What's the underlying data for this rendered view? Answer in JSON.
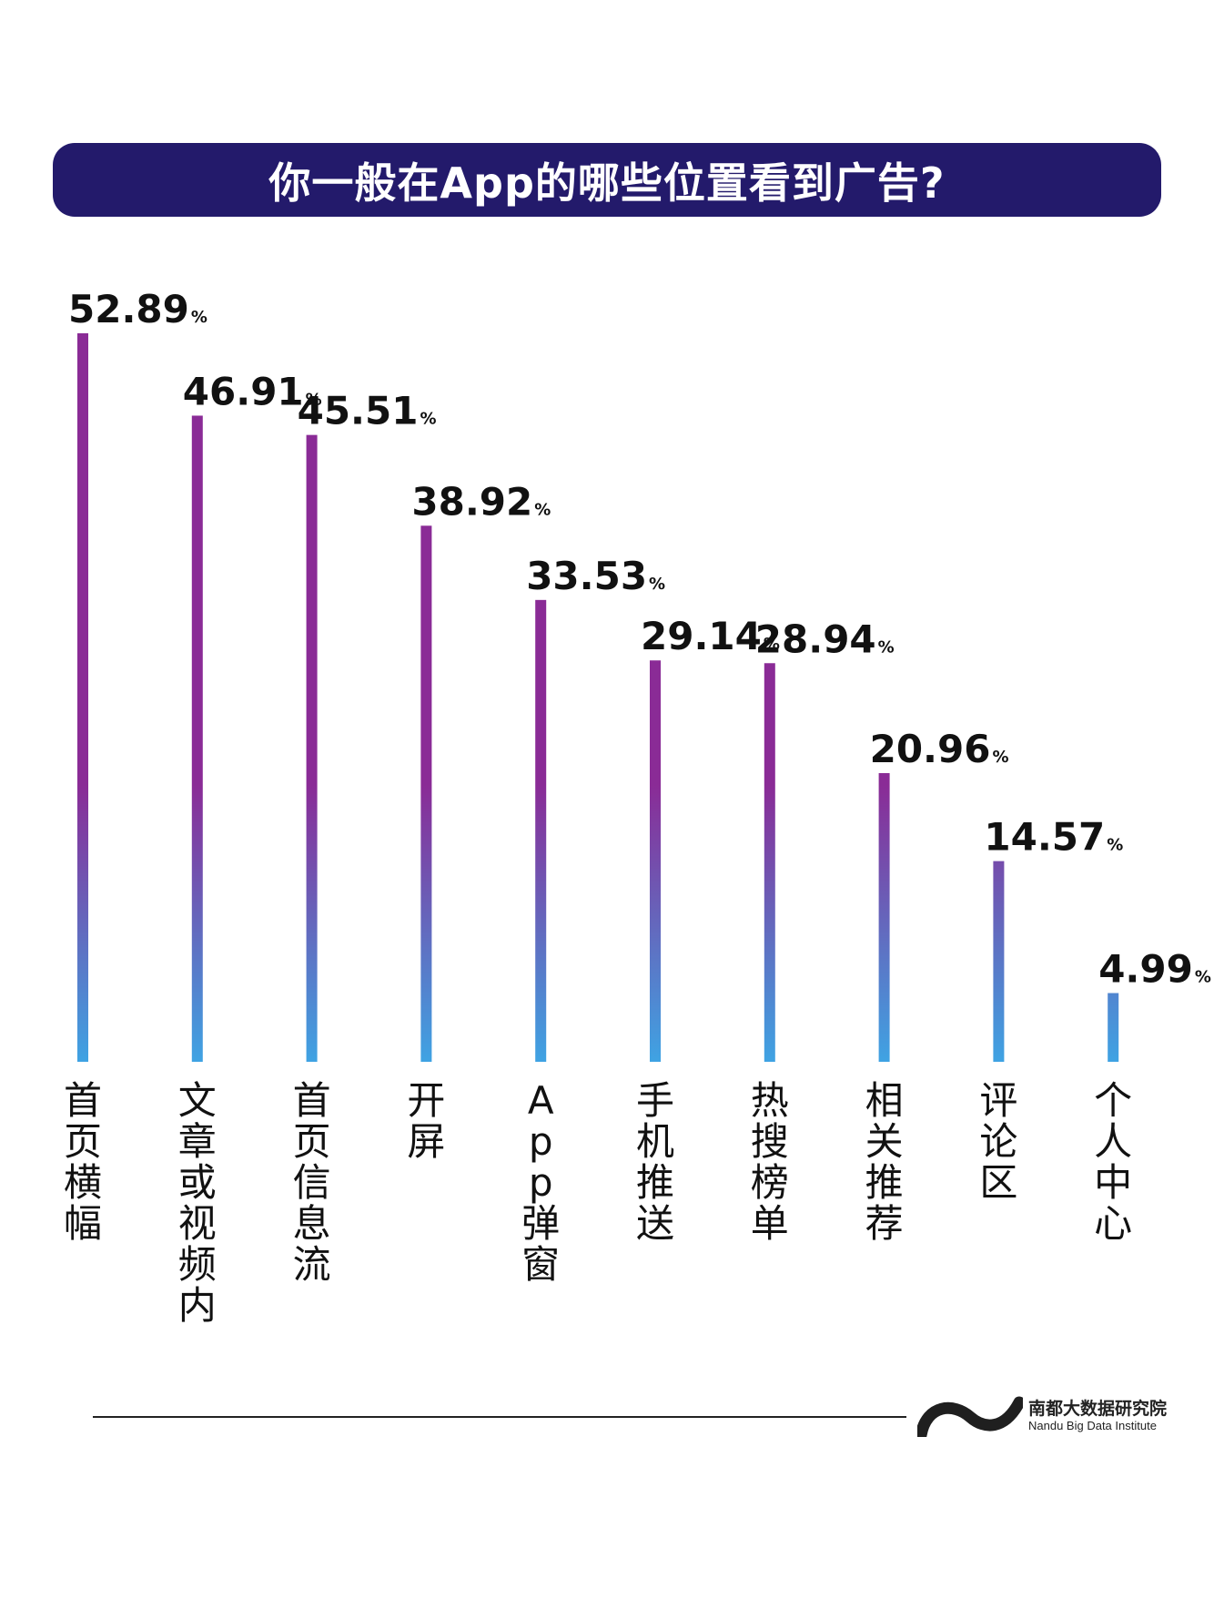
{
  "title": "你一般在App的哪些位置看到广告?",
  "chart_data": {
    "type": "bar",
    "title": "你一般在App的哪些位置看到广告?",
    "categories": [
      "首页横幅",
      "文章或视频内",
      "首页信息流",
      "开屏",
      "App弹窗",
      "手机推送",
      "热搜榜单",
      "相关推荐",
      "评论区",
      "个人中心"
    ],
    "values": [
      52.89,
      46.91,
      45.51,
      38.92,
      33.53,
      29.14,
      28.94,
      20.96,
      14.57,
      4.99
    ],
    "value_labels": [
      "52.89",
      "46.91",
      "45.51",
      "38.92",
      "33.53",
      "29.14",
      "28.94",
      "20.96",
      "14.57",
      "4.99"
    ],
    "unit": "%",
    "ylim": [
      0,
      52.89
    ],
    "grid": false,
    "legend": "none",
    "colors": {
      "bar_top": "#8a2b96",
      "bar_bottom": "#3fa3e3"
    }
  },
  "footer": {
    "logo_cn": "南都大数据研究院",
    "logo_en": "Nandu Big Data Institute"
  },
  "colors": {
    "banner": "#231a6b",
    "text": "#111111"
  }
}
